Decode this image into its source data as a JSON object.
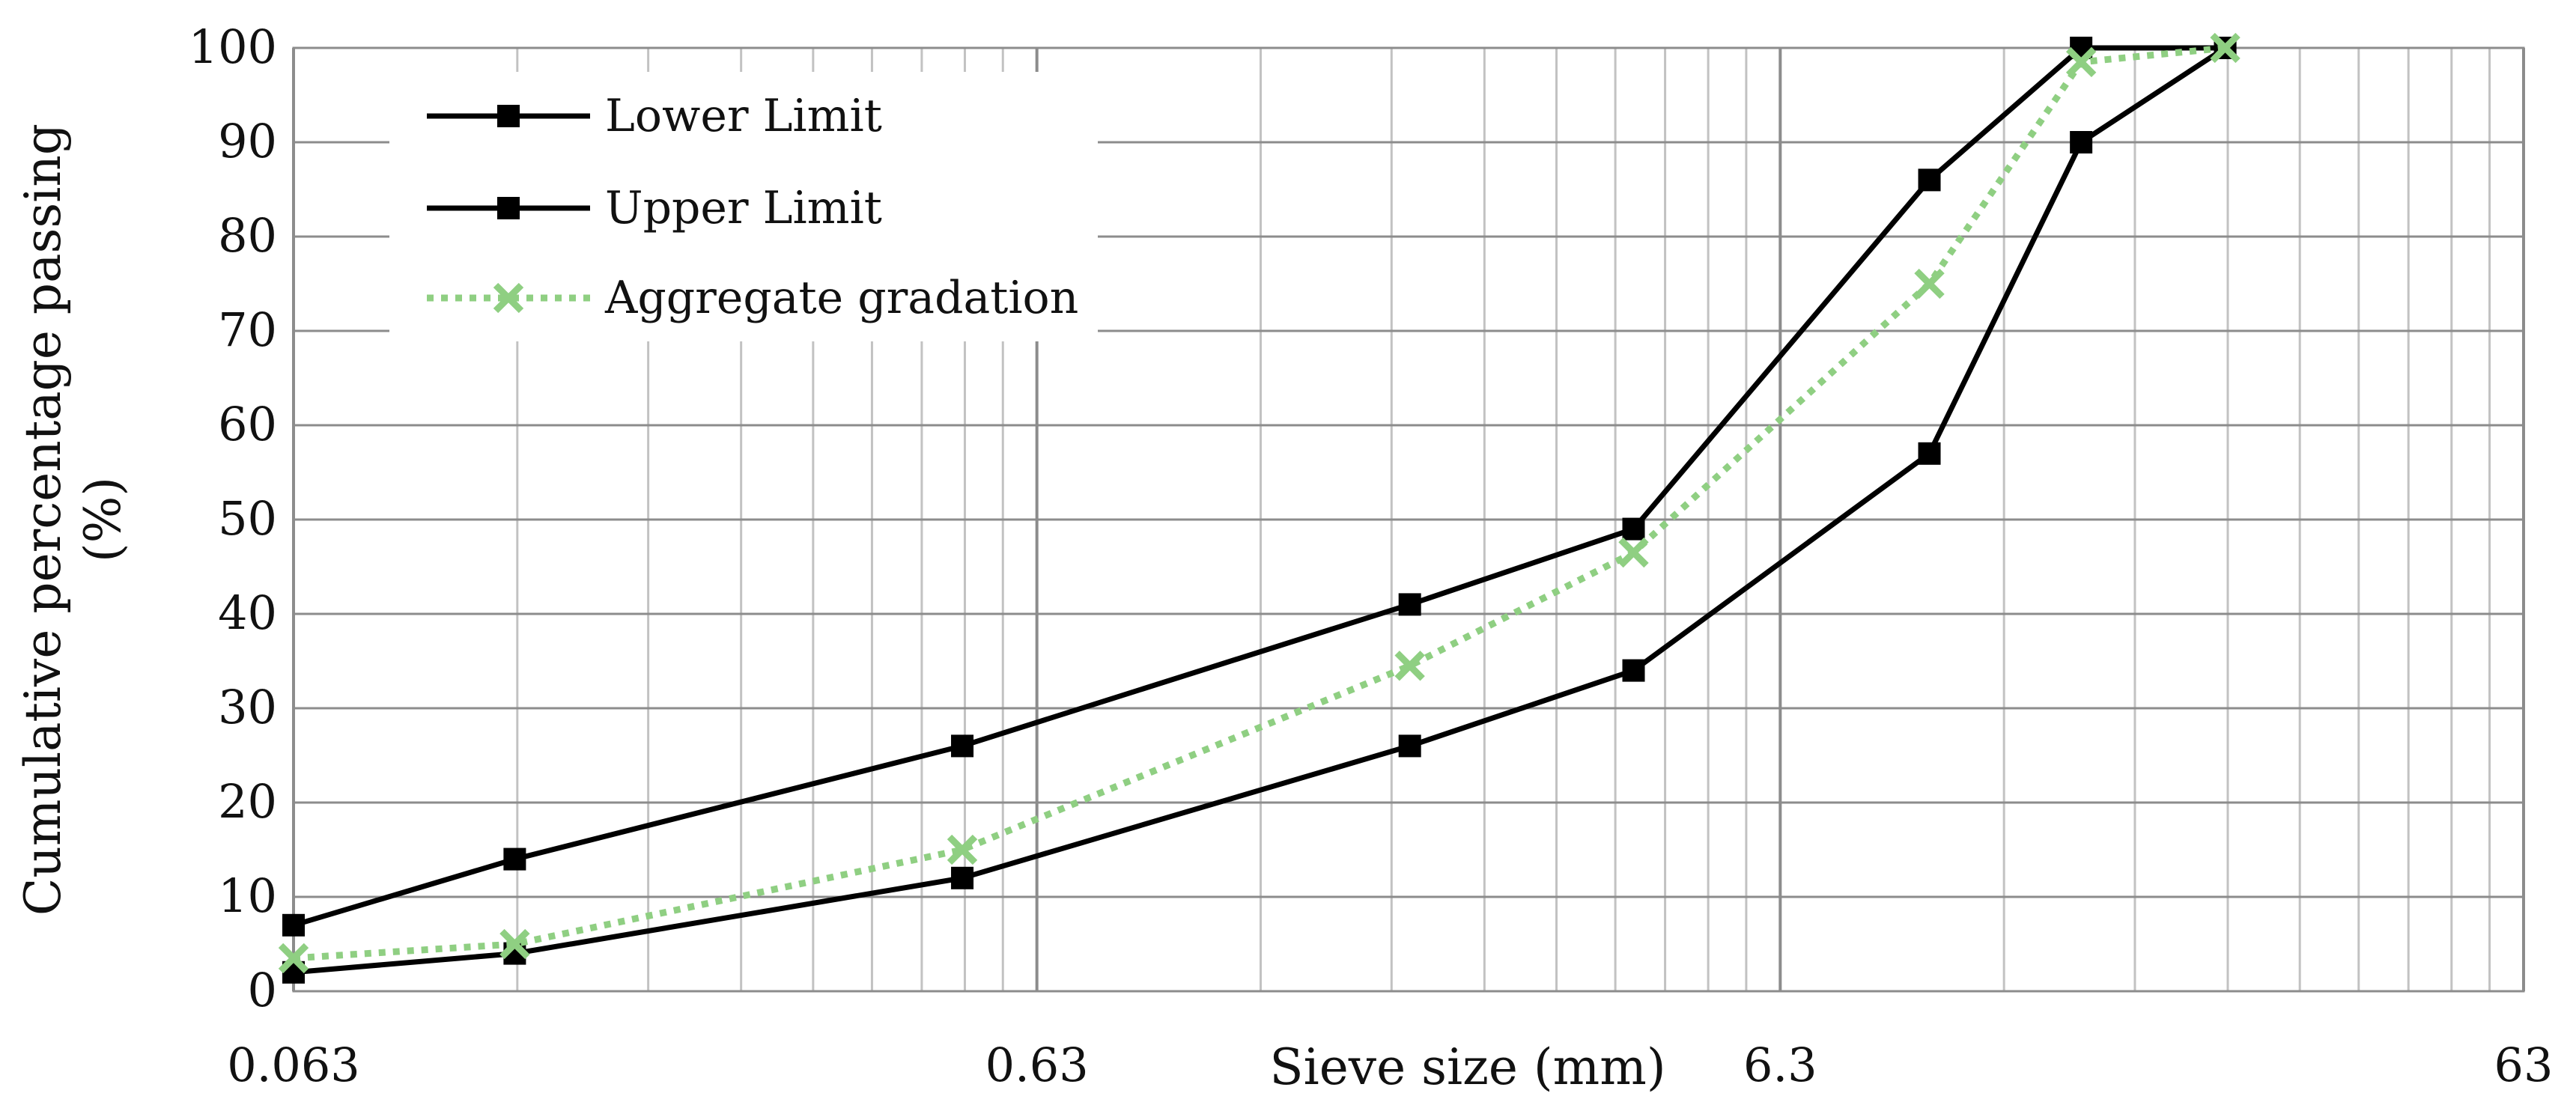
{
  "chart_data": {
    "type": "line",
    "title": "",
    "xlabel": "Sieve size (mm)",
    "ylabel_lines": [
      "Cumulative percentage passing",
      "(%)"
    ],
    "x_scale": "log",
    "xlim": [
      0.063,
      63
    ],
    "ylim": [
      0,
      100
    ],
    "x_ticks": [
      0.063,
      0.63,
      6.3,
      63
    ],
    "x_tick_labels": [
      "0.063",
      "0.63",
      "6.3",
      "63"
    ],
    "y_ticks": [
      0,
      10,
      20,
      30,
      40,
      50,
      60,
      70,
      80,
      90,
      100
    ],
    "y_tick_labels": [
      "0",
      "10",
      "20",
      "30",
      "40",
      "50",
      "60",
      "70",
      "80",
      "90",
      "100"
    ],
    "grid": true,
    "legend_position": "top-left",
    "series": [
      {
        "name": "Lower Limit",
        "color": "#000000",
        "marker": "square",
        "line_style": "solid",
        "x": [
          0.063,
          0.125,
          0.5,
          2,
          4,
          10,
          16,
          25
        ],
        "values": [
          2,
          4,
          12,
          26,
          34,
          57,
          90,
          100
        ]
      },
      {
        "name": "Upper Limit",
        "color": "#000000",
        "marker": "square",
        "line_style": "solid",
        "x": [
          0.063,
          0.125,
          0.5,
          2,
          4,
          10,
          16,
          25
        ],
        "values": [
          7,
          14,
          26,
          41,
          49,
          86,
          100,
          100
        ]
      },
      {
        "name": "Aggregate gradation",
        "color": "#8fcf82",
        "marker": "x",
        "line_style": "dotted",
        "x": [
          0.063,
          0.125,
          0.5,
          2,
          4,
          10,
          16,
          25
        ],
        "values": [
          3.5,
          5,
          15,
          34.5,
          46.5,
          75,
          98.5,
          100
        ]
      }
    ]
  }
}
